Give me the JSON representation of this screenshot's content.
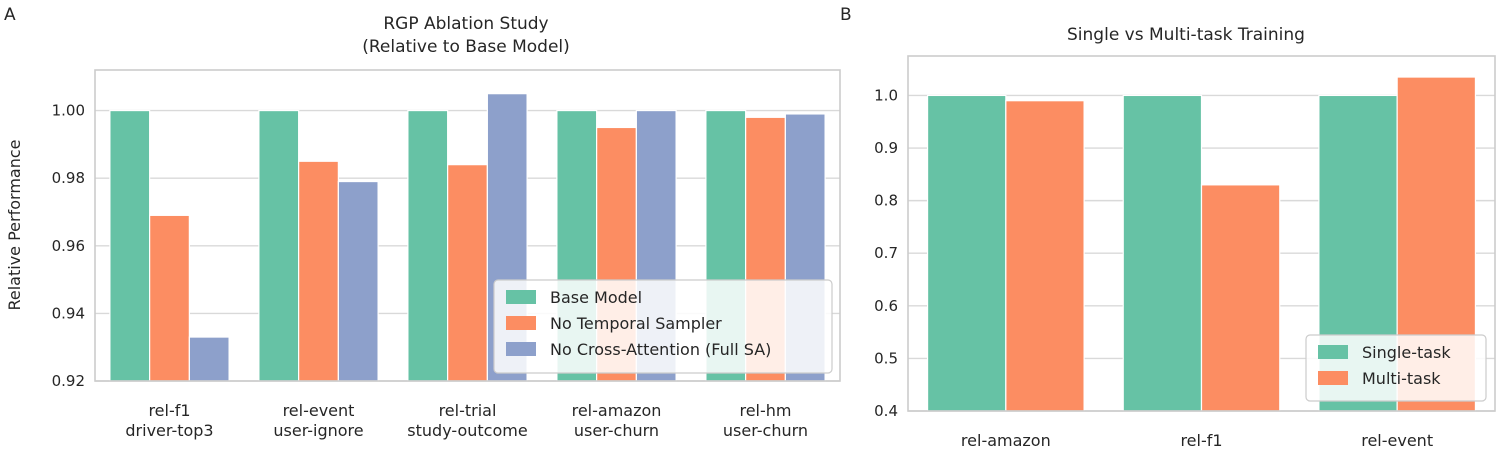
{
  "chart_data": [
    {
      "panel": "A",
      "type": "bar",
      "title": "RGP Ablation Study\n(Relative to Base Model)",
      "xlabel": "",
      "ylabel": "Relative Performance",
      "categories": [
        "rel-f1\ndriver-top3",
        "rel-event\nuser-ignore",
        "rel-trial\nstudy-outcome",
        "rel-amazon\nuser-churn",
        "rel-hm\nuser-churn"
      ],
      "series": [
        {
          "name": "Base Model",
          "color": "#66c2a5",
          "values": [
            1.0,
            1.0,
            1.0,
            1.0,
            1.0
          ]
        },
        {
          "name": "No Temporal Sampler",
          "color": "#fc8d62",
          "values": [
            0.969,
            0.985,
            0.984,
            0.995,
            0.998
          ]
        },
        {
          "name": "No Cross-Attention (Full SA)",
          "color": "#8da0cb",
          "values": [
            0.933,
            0.979,
            1.005,
            1.0,
            0.999
          ]
        }
      ],
      "ylim": [
        0.92,
        1.012
      ],
      "yticks": [
        "0.92",
        "0.94",
        "0.96",
        "0.98",
        "1.00"
      ],
      "grid": true,
      "legend": "lower-right"
    },
    {
      "panel": "B",
      "type": "bar",
      "title": "Single vs Multi-task Training",
      "xlabel": "",
      "ylabel": "",
      "categories": [
        "rel-amazon",
        "rel-f1",
        "rel-event"
      ],
      "series": [
        {
          "name": "Single-task",
          "color": "#66c2a5",
          "values": [
            1.0,
            1.0,
            1.0
          ]
        },
        {
          "name": "Multi-task",
          "color": "#fc8d62",
          "values": [
            0.99,
            0.83,
            1.035
          ]
        }
      ],
      "ylim": [
        0.4,
        1.075
      ],
      "yticks": [
        "0.4",
        "0.5",
        "0.6",
        "0.7",
        "0.8",
        "0.9",
        "1.0"
      ],
      "grid": true,
      "legend": "lower-right"
    }
  ]
}
